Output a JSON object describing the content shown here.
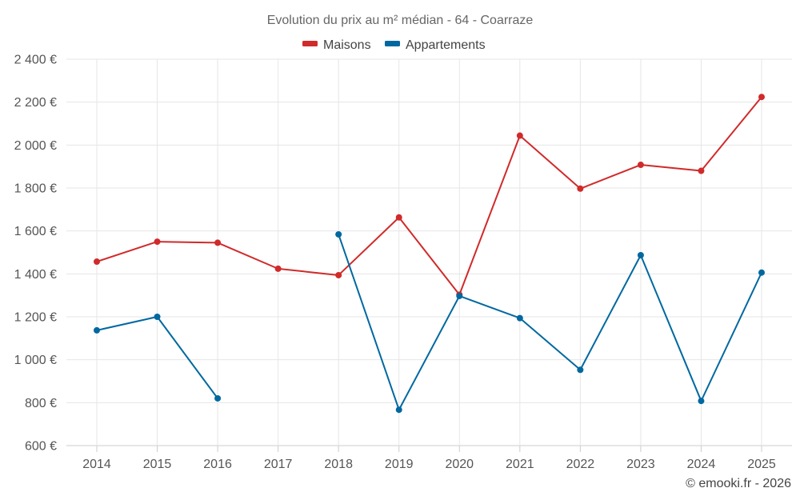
{
  "chart_data": {
    "type": "line",
    "title": "Evolution du prix au m² médian - 64 - Coarraze",
    "x": [
      "2014",
      "2015",
      "2016",
      "2017",
      "2018",
      "2019",
      "2020",
      "2021",
      "2022",
      "2023",
      "2024",
      "2025"
    ],
    "ylim": [
      600,
      2400
    ],
    "yticks": [
      600,
      800,
      1000,
      1200,
      1400,
      1600,
      1800,
      2000,
      2200,
      2400
    ],
    "ytick_labels": [
      "600 €",
      "800 €",
      "1 000 €",
      "1 200 €",
      "1 400 €",
      "1 600 €",
      "1 800 €",
      "2 000 €",
      "2 200 €",
      "2 400 €"
    ],
    "grid": true,
    "legend_position": "top-center",
    "series": [
      {
        "name": "Maisons",
        "color": "#d12a2a",
        "values": [
          1457,
          1550,
          1545,
          1424,
          1394,
          1663,
          1303,
          2044,
          1797,
          1908,
          1880,
          2224
        ]
      },
      {
        "name": "Appartements",
        "color": "#0068a0",
        "values": [
          1137,
          1200,
          820,
          null,
          1584,
          767,
          1297,
          1194,
          953,
          1487,
          808,
          1406
        ]
      }
    ],
    "credit": "© emooki.fr - 2026"
  }
}
